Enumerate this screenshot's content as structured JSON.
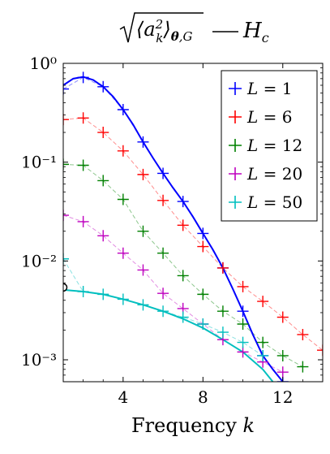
{
  "chart_data": {
    "type": "line",
    "title": "√⟨a²ₖ⟩θ,G — Hc",
    "xlabel": "Frequency k",
    "ylabel": "",
    "xscale": "linear",
    "yscale": "log",
    "xlim": [
      1,
      14
    ],
    "ylim": [
      0.0006,
      1
    ],
    "xticks": [
      4,
      8,
      12
    ],
    "xtick_labels": [
      "4",
      "8",
      "12"
    ],
    "yticks": [
      0.001,
      0.01,
      0.1,
      1
    ],
    "ytick_labels": [
      "10⁻³",
      "10⁻²",
      "10⁻¹",
      "10⁰"
    ],
    "grid": false,
    "legend_position": "top-right",
    "series": [
      {
        "name": "L = 1",
        "color": "#0000ff",
        "marker": "plus",
        "x": [
          1,
          2,
          3,
          4,
          5,
          6,
          7,
          8,
          9,
          10,
          11,
          12
        ],
        "y": [
          0.55,
          0.72,
          0.58,
          0.34,
          0.16,
          0.077,
          0.04,
          0.019,
          0.0085,
          0.0031,
          0.0011,
          0.0006
        ]
      },
      {
        "name": "L = 6",
        "color": "#ff0000",
        "marker": "plus",
        "x": [
          1,
          2,
          3,
          4,
          5,
          6,
          7,
          8,
          9,
          10,
          11,
          12,
          13,
          14
        ],
        "y": [
          0.27,
          0.28,
          0.2,
          0.13,
          0.075,
          0.041,
          0.023,
          0.014,
          0.0085,
          0.0055,
          0.0039,
          0.0027,
          0.0018,
          0.00125
        ]
      },
      {
        "name": "L = 12",
        "color": "#008000",
        "marker": "plus",
        "x": [
          1,
          2,
          3,
          4,
          5,
          6,
          7,
          8,
          9,
          10,
          11,
          12,
          13
        ],
        "y": [
          0.095,
          0.093,
          0.065,
          0.042,
          0.02,
          0.012,
          0.0071,
          0.0046,
          0.0031,
          0.0023,
          0.0015,
          0.0011,
          0.00085
        ]
      },
      {
        "name": "L = 20",
        "color": "#bf00bf",
        "marker": "plus",
        "x": [
          1,
          2,
          3,
          4,
          5,
          6,
          7,
          8,
          9,
          10,
          11,
          12
        ],
        "y": [
          0.029,
          0.025,
          0.018,
          0.012,
          0.0081,
          0.0047,
          0.0033,
          0.0023,
          0.0016,
          0.0012,
          0.00095,
          0.00075
        ]
      },
      {
        "name": "L = 50",
        "color": "#00bfbf",
        "marker": "plus",
        "x": [
          1,
          2,
          3,
          4,
          5,
          6,
          7,
          8,
          9,
          10,
          11
        ],
        "y": [
          0.0105,
          0.0049,
          0.0046,
          0.0041,
          0.0036,
          0.0031,
          0.0027,
          0.0023,
          0.0019,
          0.0015,
          0.0011
        ]
      }
    ],
    "curves": [
      {
        "color": "#0000ff",
        "x": [
          1,
          1.5,
          2,
          2.5,
          3,
          3.5,
          4,
          4.5,
          5,
          5.5,
          6,
          6.5,
          7,
          7.5,
          8,
          8.5,
          9,
          9.5,
          10,
          10.5,
          11,
          11.5,
          12
        ],
        "y": [
          0.6,
          0.7,
          0.73,
          0.68,
          0.58,
          0.46,
          0.34,
          0.24,
          0.16,
          0.11,
          0.077,
          0.055,
          0.04,
          0.028,
          0.019,
          0.013,
          0.0085,
          0.0052,
          0.0031,
          0.0018,
          0.0011,
          0.0008,
          0.0006
        ]
      },
      {
        "color": "#00bfbf",
        "x": [
          1,
          2,
          3,
          4,
          5,
          6,
          7,
          8,
          9,
          10,
          11,
          11.5
        ],
        "y": [
          0.0051,
          0.0049,
          0.0046,
          0.0041,
          0.0036,
          0.0031,
          0.0026,
          0.0021,
          0.0016,
          0.0012,
          0.0008,
          0.0006
        ]
      }
    ],
    "markers": [
      {
        "shape": "open-circle",
        "color": "#000000",
        "x": 1,
        "y": 0.0054
      }
    ]
  }
}
